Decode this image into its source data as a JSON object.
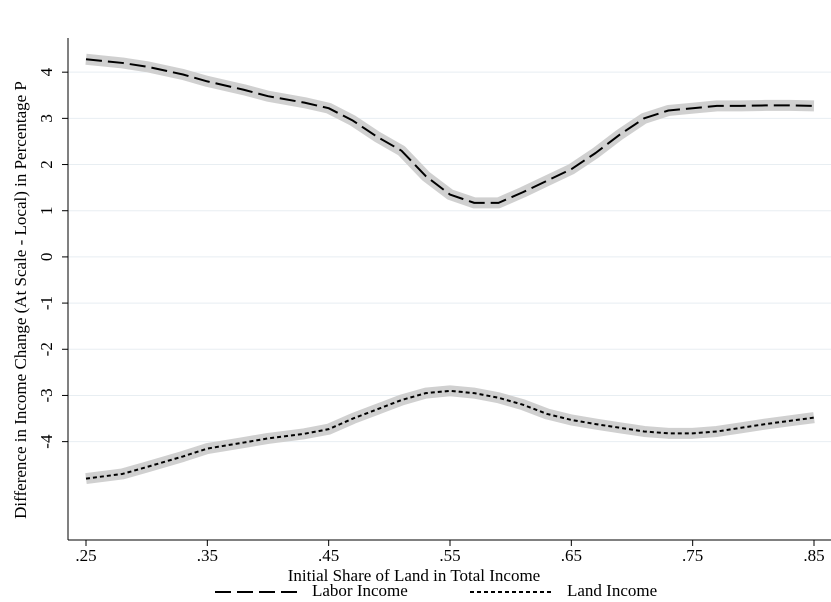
{
  "chart_data": {
    "type": "line",
    "x_label": "Initial Share of Land in Total Income",
    "y_label": "Difference in Income Change (At Scale - Local) in Percentage P",
    "x": [
      0.25,
      0.28,
      0.3,
      0.33,
      0.35,
      0.38,
      0.4,
      0.43,
      0.45,
      0.47,
      0.49,
      0.51,
      0.53,
      0.55,
      0.57,
      0.59,
      0.61,
      0.63,
      0.65,
      0.67,
      0.69,
      0.71,
      0.73,
      0.75,
      0.77,
      0.79,
      0.81,
      0.83,
      0.85
    ],
    "series": [
      {
        "name": "Labor Income",
        "color": "#000000",
        "dash": "long",
        "values": [
          4.28,
          4.2,
          4.12,
          3.95,
          3.8,
          3.62,
          3.48,
          3.34,
          3.22,
          2.95,
          2.6,
          2.3,
          1.75,
          1.35,
          1.17,
          1.17,
          1.4,
          1.65,
          1.9,
          2.25,
          2.65,
          3.0,
          3.17,
          3.22,
          3.27,
          3.27,
          3.28,
          3.28,
          3.27
        ]
      },
      {
        "name": "Land Income",
        "color": "#000000",
        "dash": "short",
        "values": [
          -4.8,
          -4.7,
          -4.55,
          -4.32,
          -4.15,
          -4.02,
          -3.93,
          -3.83,
          -3.73,
          -3.5,
          -3.3,
          -3.1,
          -2.95,
          -2.9,
          -2.95,
          -3.05,
          -3.2,
          -3.4,
          -3.53,
          -3.62,
          -3.7,
          -3.78,
          -3.82,
          -3.82,
          -3.78,
          -3.7,
          -3.62,
          -3.55,
          -3.48
        ]
      }
    ],
    "xlim": [
      0.25,
      0.85
    ],
    "xticks": [
      {
        "value": 0.25,
        "label": ".25"
      },
      {
        "value": 0.35,
        "label": ".35"
      },
      {
        "value": 0.45,
        "label": ".45"
      },
      {
        "value": 0.55,
        "label": ".55"
      },
      {
        "value": 0.65,
        "label": ".65"
      },
      {
        "value": 0.75,
        "label": ".75"
      },
      {
        "value": 0.85,
        "label": ".85"
      }
    ],
    "ylim": [
      -6.13,
      4.74
    ],
    "yticks": [
      -4,
      -3,
      -2,
      -1,
      0,
      1,
      2,
      3,
      4
    ],
    "grid": true,
    "confidence_band": true,
    "legend": "bottom"
  }
}
